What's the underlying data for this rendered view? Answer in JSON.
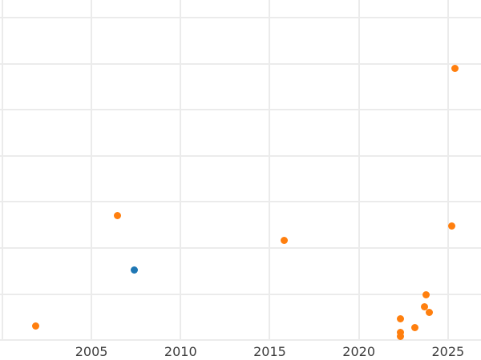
{
  "chart": {
    "background_color": "#ffffff",
    "gridline_color": "#ebebeb",
    "tick_label_color": "#3d3d3d"
  },
  "chart_data": {
    "type": "scatter",
    "title": "",
    "subtitle": "",
    "xlabel": "",
    "ylabel": "",
    "grid": true,
    "legend": false,
    "y_axis_labels_visible": false,
    "xlim": [
      1999.87,
      2026.85
    ],
    "ylim": [
      -0.43,
      7.38
    ],
    "x_gridlines": [
      2000,
      2005,
      2010,
      2015,
      2020,
      2025
    ],
    "x_ticks": [
      {
        "value": 2005,
        "label": "2005"
      },
      {
        "value": 2010,
        "label": "2010"
      },
      {
        "value": 2015,
        "label": "2015"
      },
      {
        "value": 2020,
        "label": "2020"
      },
      {
        "value": 2025,
        "label": "2025"
      }
    ],
    "y_gridlines": [
      0,
      1,
      2,
      3,
      4,
      5,
      6,
      7
    ],
    "series": [
      {
        "name": "blue-series",
        "color": "#1f77b4",
        "points": [
          {
            "x": 2007.38,
            "y": 1.53
          }
        ]
      },
      {
        "name": "orange-series",
        "color": "#ff7f0e",
        "points": [
          {
            "x": 2001.85,
            "y": 0.31
          },
          {
            "x": 2006.44,
            "y": 2.71
          },
          {
            "x": 2015.79,
            "y": 2.17
          },
          {
            "x": 2022.31,
            "y": 0.47
          },
          {
            "x": 2022.31,
            "y": 0.17
          },
          {
            "x": 2022.31,
            "y": 0.08
          },
          {
            "x": 2023.12,
            "y": 0.28
          },
          {
            "x": 2023.7,
            "y": 0.73
          },
          {
            "x": 2023.75,
            "y": 0.99
          },
          {
            "x": 2023.93,
            "y": 0.61
          },
          {
            "x": 2025.19,
            "y": 2.47
          },
          {
            "x": 2025.41,
            "y": 5.89
          }
        ]
      }
    ]
  }
}
